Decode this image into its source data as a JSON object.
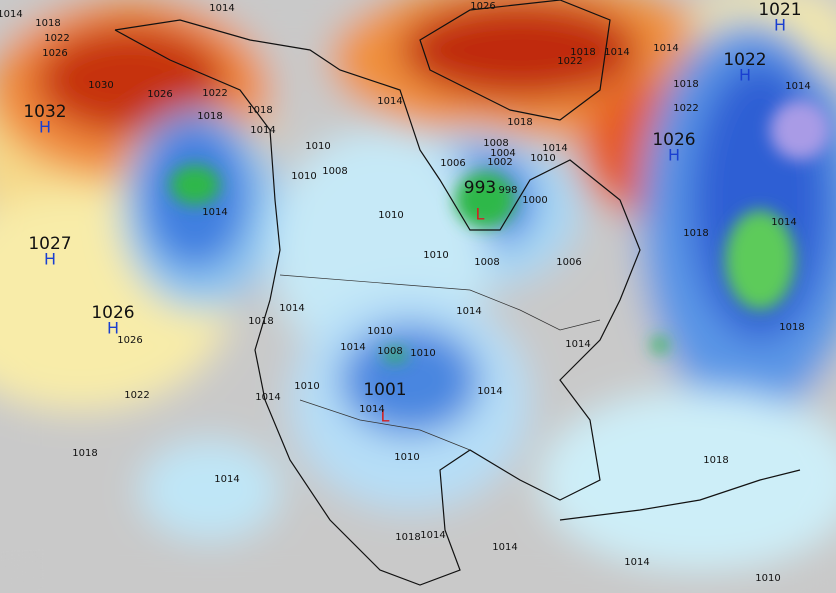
{
  "pressure_centers": [
    {
      "value": "1032",
      "type": "H"
    },
    {
      "value": "1027",
      "type": "H"
    },
    {
      "value": "1026",
      "type": "H"
    },
    {
      "value": "993",
      "type": "L"
    },
    {
      "value": "1001",
      "type": "L"
    },
    {
      "value": "1026",
      "type": "H"
    },
    {
      "value": "1022",
      "type": "H"
    },
    {
      "value": "1021",
      "type": "H"
    }
  ],
  "isobar_labels": [
    "1014",
    "1018",
    "1022",
    "1026",
    "1030",
    "1026",
    "1022",
    "1018",
    "1018",
    "1014",
    "1014",
    "1026",
    "1018",
    "1022",
    "1014",
    "1014",
    "1018",
    "1022",
    "1018",
    "1014",
    "1010",
    "1008",
    "1004",
    "1002",
    "1006",
    "998",
    "1000",
    "1014",
    "1010",
    "1008",
    "1010",
    "1014",
    "1010",
    "1010",
    "1008",
    "1006",
    "1018",
    "1014",
    "1014",
    "1018",
    "1018",
    "1014",
    "1014",
    "1010",
    "1014",
    "1008",
    "1010",
    "1014",
    "1010",
    "1014",
    "1014",
    "1014",
    "1022",
    "1026",
    "1018",
    "1014",
    "1010",
    "1018",
    "1018",
    "1014",
    "1014",
    "1014",
    "1010"
  ]
}
